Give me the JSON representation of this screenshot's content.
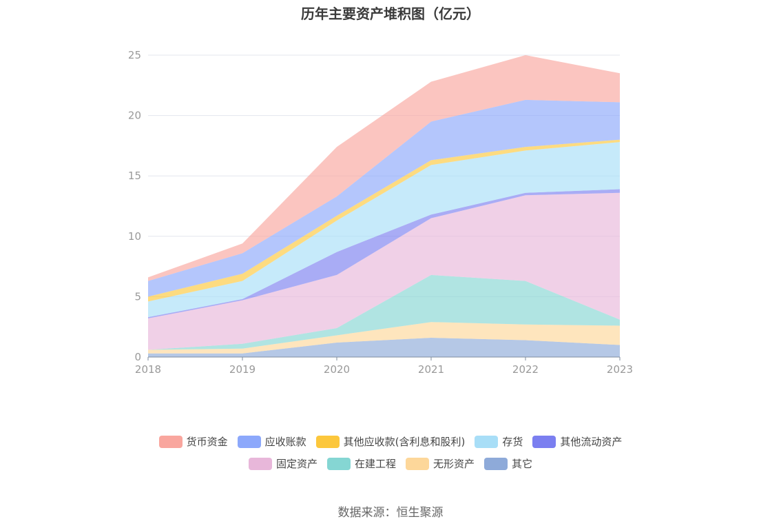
{
  "title": "历年主要资产堆积图（亿元）",
  "source": "数据来源：恒生聚源",
  "chart_data": {
    "type": "area",
    "stacked": true,
    "title": "历年主要资产堆积图（亿元）",
    "x": [
      "2018",
      "2019",
      "2020",
      "2021",
      "2022",
      "2023"
    ],
    "ylim": [
      0,
      25
    ],
    "yticks": [
      0,
      5,
      10,
      15,
      20,
      25
    ],
    "grid": true,
    "legend_position": "bottom",
    "series": [
      {
        "name": "其它",
        "color": "#8eaad9",
        "values": [
          0.3,
          0.3,
          1.2,
          1.6,
          1.4,
          1.0
        ]
      },
      {
        "name": "无形资产",
        "color": "#fdd79a",
        "values": [
          0.3,
          0.4,
          0.6,
          1.3,
          1.3,
          1.6
        ]
      },
      {
        "name": "在建工程",
        "color": "#85d6d3",
        "values": [
          0.0,
          0.4,
          0.6,
          3.9,
          3.6,
          0.5
        ]
      },
      {
        "name": "固定资产",
        "color": "#e8b7da",
        "values": [
          2.6,
          3.6,
          4.4,
          4.7,
          7.1,
          10.5
        ]
      },
      {
        "name": "其他流动资产",
        "color": "#7b7ff0",
        "values": [
          0.1,
          0.1,
          1.9,
          0.3,
          0.2,
          0.3
        ]
      },
      {
        "name": "存货",
        "color": "#a8def7",
        "values": [
          1.3,
          1.5,
          2.6,
          4.1,
          3.5,
          3.9
        ]
      },
      {
        "name": "其他应收款(含利息和股利)",
        "color": "#fcc73c",
        "values": [
          0.4,
          0.6,
          0.4,
          0.4,
          0.3,
          0.2
        ]
      },
      {
        "name": "应收账款",
        "color": "#8ca8fb",
        "values": [
          1.3,
          1.7,
          1.6,
          3.2,
          3.9,
          3.1
        ]
      },
      {
        "name": "货币资金",
        "color": "#f9a69e",
        "values": [
          0.3,
          0.8,
          4.1,
          3.3,
          3.7,
          2.4
        ]
      }
    ]
  },
  "legend": {
    "row1": [
      "货币资金",
      "应收账款",
      "其他应收款(含利息和股利)",
      "存货",
      "其他流动资产"
    ],
    "row2": [
      "固定资产",
      "在建工程",
      "无形资产",
      "其它"
    ]
  }
}
